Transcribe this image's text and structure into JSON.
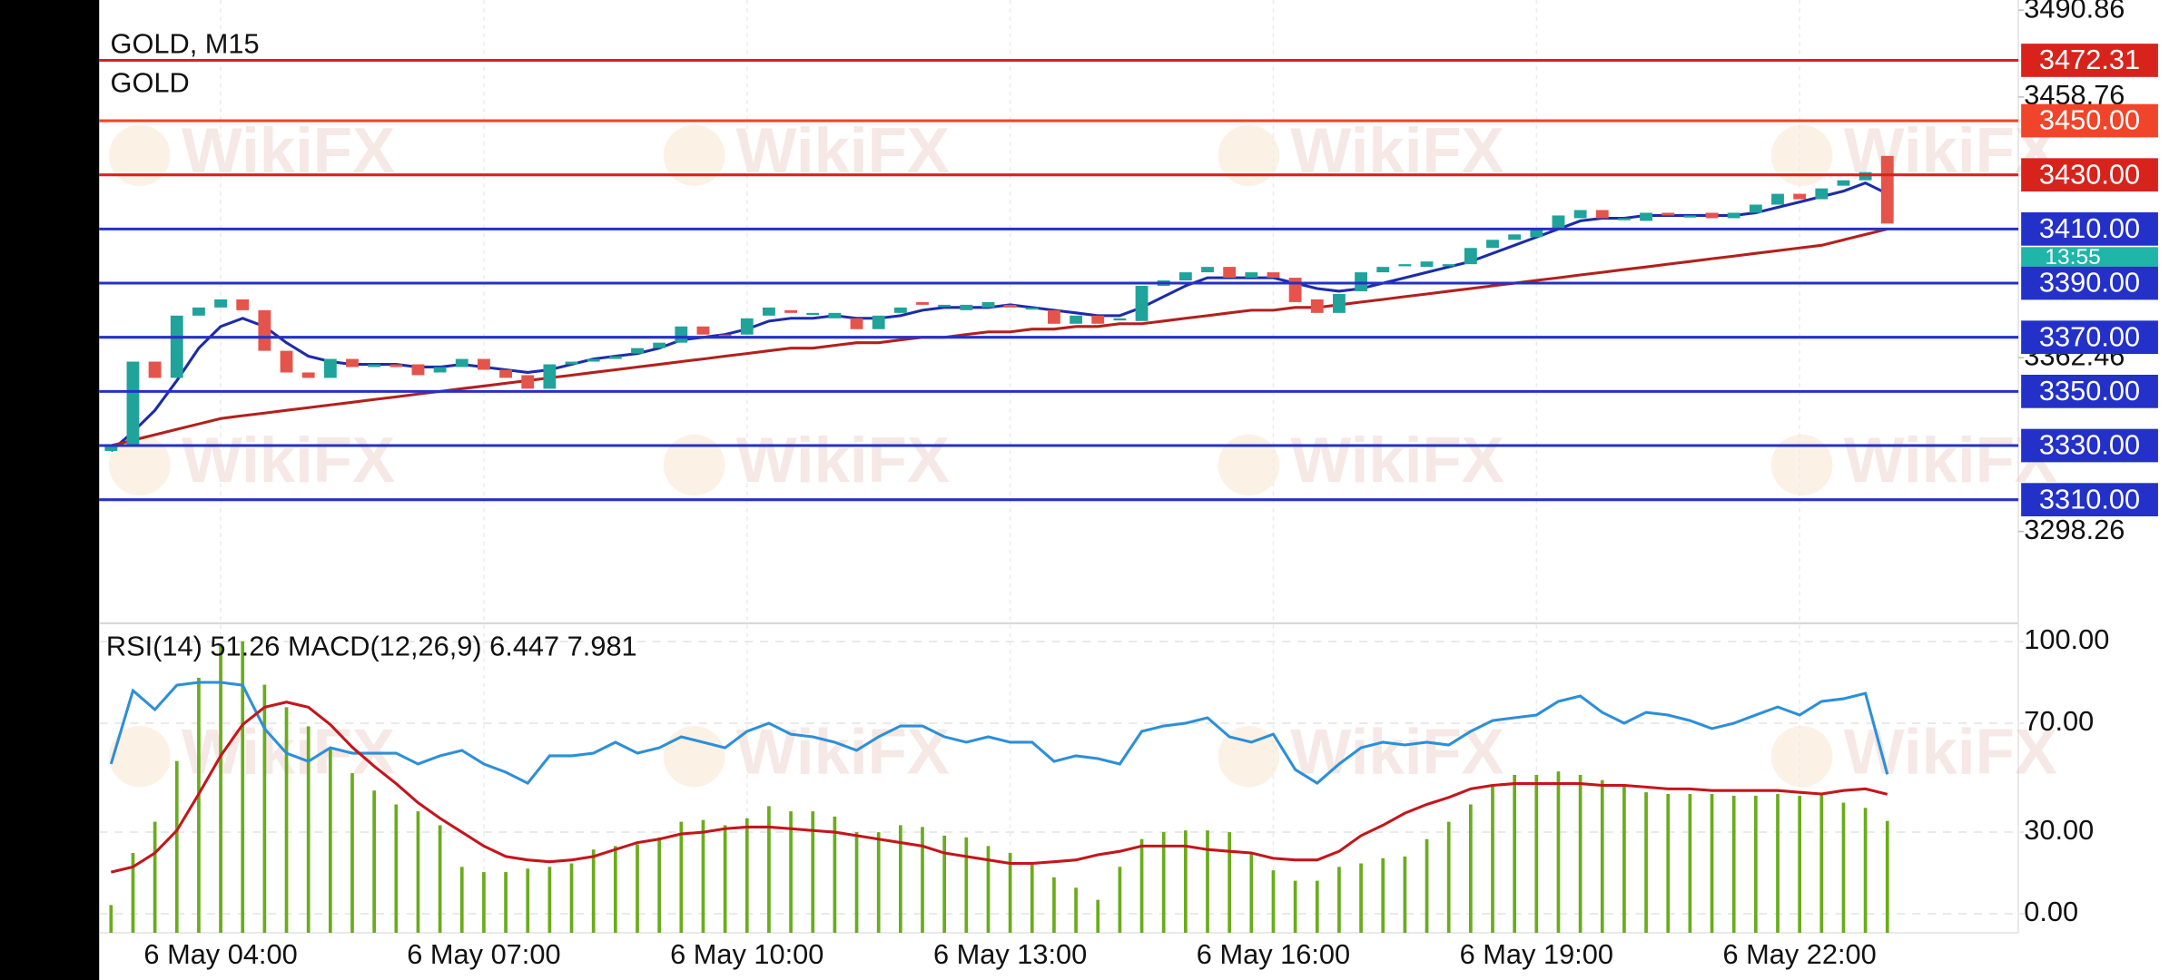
{
  "watermark": "WikiFX",
  "chart_data": [
    {
      "type": "candlestick",
      "title": "GOLD, M15",
      "subtitle": "GOLD",
      "countdown": "13:55",
      "up_color": "#20a39b",
      "down_color": "#e5544b",
      "grid": true,
      "ylim": [
        3266.4,
        3494.6
      ],
      "yticks": [
        3490.86,
        3458.76,
        3362.46,
        3298.26
      ],
      "categories": [
        null,
        null,
        null,
        null,
        null,
        "6 May 04:00",
        null,
        null,
        null,
        null,
        null,
        null,
        null,
        null,
        null,
        null,
        null,
        "6 May 07:00",
        null,
        null,
        null,
        null,
        null,
        null,
        null,
        null,
        null,
        null,
        null,
        "6 May 10:00",
        null,
        null,
        null,
        null,
        null,
        null,
        null,
        null,
        null,
        null,
        null,
        "6 May 13:00",
        null,
        null,
        null,
        null,
        null,
        null,
        null,
        null,
        null,
        null,
        null,
        "6 May 16:00",
        null,
        null,
        null,
        null,
        null,
        null,
        null,
        null,
        null,
        null,
        null,
        "6 May 19:00",
        null,
        null,
        null,
        null,
        null,
        null,
        null,
        null,
        null,
        null,
        null,
        "6 May 22:00",
        null,
        null,
        null,
        null
      ],
      "open": [
        3328,
        3330,
        3361,
        3355,
        3378,
        3381,
        3384,
        3380,
        3365,
        3357,
        3355,
        3362,
        3359,
        3360,
        3360,
        3357,
        3359,
        3362,
        3358,
        3356,
        3351,
        3360,
        3361,
        3362,
        3364,
        3366,
        3368,
        3374,
        3371,
        3371,
        3378,
        3380,
        3379,
        3377,
        3377,
        3373,
        3379,
        3383,
        3382,
        3380,
        3381,
        3382,
        3381,
        3380,
        3375,
        3378,
        3377,
        3376,
        3389,
        3391,
        3394,
        3396,
        3392,
        3394,
        3392,
        3384,
        3379,
        3387,
        3394,
        3397,
        3396,
        3397,
        3397,
        3403,
        3406,
        3407,
        3410,
        3414,
        3417,
        3414,
        3413,
        3416,
        3415,
        3416,
        3414,
        3416,
        3419,
        3423,
        3421,
        3426,
        3428,
        3437
      ],
      "close": [
        3330,
        3361,
        3355,
        3378,
        3381,
        3384,
        3380,
        3365,
        3357,
        3355,
        3362,
        3359,
        3360,
        3359,
        3356,
        3359,
        3362,
        3358,
        3355,
        3351,
        3360,
        3361,
        3362,
        3363,
        3366,
        3368,
        3374,
        3371,
        3370,
        3377,
        3381,
        3379,
        3379,
        3379,
        3373,
        3378,
        3381,
        3382,
        3382,
        3382,
        3383,
        3381,
        3381,
        3375,
        3378,
        3375,
        3377,
        3389,
        3391,
        3394,
        3396,
        3392,
        3394,
        3392,
        3383,
        3379,
        3386,
        3394,
        3396,
        3397,
        3398,
        3397,
        3403,
        3406,
        3408,
        3410,
        3415,
        3417,
        3414,
        3414,
        3416,
        3415,
        3415,
        3414,
        3416,
        3419,
        3423,
        3421,
        3425,
        3428,
        3431,
        3412
      ],
      "series": [
        {
          "color": "#1c2ca8",
          "values": [
            3328,
            3335,
            3343,
            3354,
            3366,
            3374,
            3377,
            3374,
            3368,
            3363,
            3361,
            3360,
            3360,
            3360,
            3359,
            3359,
            3360,
            3359,
            3358,
            3357,
            3358,
            3360,
            3362,
            3363,
            3364,
            3366,
            3369,
            3370,
            3371,
            3373,
            3376,
            3377,
            3377,
            3378,
            3377,
            3377,
            3378,
            3380,
            3381,
            3381,
            3381,
            3382,
            3381,
            3380,
            3379,
            3378,
            3378,
            3381,
            3385,
            3389,
            3392,
            3392,
            3392,
            3392,
            3390,
            3388,
            3387,
            3388,
            3390,
            3392,
            3394,
            3396,
            3398,
            3401,
            3404,
            3407,
            3410,
            3413,
            3414,
            3414,
            3415,
            3415,
            3415,
            3415,
            3415,
            3416,
            3418,
            3420,
            3422,
            3424,
            3427,
            3423
          ]
        },
        {
          "color": "#b3201c",
          "values": [
            3330,
            3332,
            3334,
            3336,
            3338,
            3340,
            3341,
            3342,
            3343,
            3344,
            3345,
            3346,
            3347,
            3348,
            3349,
            3350,
            3351,
            3352,
            3353,
            3354,
            3355,
            3356,
            3357,
            3358,
            3359,
            3360,
            3361,
            3362,
            3363,
            3364,
            3365,
            3366,
            3366,
            3367,
            3368,
            3368,
            3369,
            3370,
            3370,
            3371,
            3372,
            3372,
            3373,
            3373,
            3374,
            3374,
            3375,
            3375,
            3376,
            3377,
            3378,
            3379,
            3380,
            3380,
            3381,
            3381,
            3382,
            3383,
            3384,
            3385,
            3386,
            3387,
            3388,
            3389,
            3390,
            3391,
            3392,
            3393,
            3394,
            3395,
            3396,
            3397,
            3398,
            3399,
            3400,
            3401,
            3402,
            3403,
            3404,
            3406,
            3408,
            3410
          ]
        }
      ],
      "levels": [
        {
          "value": 3472.31,
          "label": "3472.31",
          "color": "#d8231c"
        },
        {
          "value": 3450,
          "label": "3450.00",
          "color": "#f0452a"
        },
        {
          "value": 3430,
          "label": "3430.00",
          "color": "#d8231c"
        },
        {
          "value": 3410,
          "label": "3410.00",
          "color": "#2431c8"
        },
        {
          "value": 3390,
          "label": "3390.00",
          "color": "#2431c8"
        },
        {
          "value": 3370,
          "label": "3370.00",
          "color": "#2431c8"
        },
        {
          "value": 3350,
          "label": "3350.00",
          "color": "#2431c8"
        },
        {
          "value": 3330,
          "label": "3330.00",
          "color": "#2431c8"
        },
        {
          "value": 3310,
          "label": "3310.00",
          "color": "#2431c8"
        }
      ]
    },
    {
      "type": "indicator",
      "title": "RSI(14) 51.26 MACD(12,26,9) 6.447 7.981",
      "ylim": [
        -7,
        105.2
      ],
      "y2lim": [
        0,
        17.6
      ],
      "yticks": [
        {
          "value": 100,
          "label": "100.00"
        },
        {
          "value": 70,
          "label": "70.00"
        },
        {
          "value": 30,
          "label": "30.00"
        },
        {
          "value": 0,
          "label": "0.00"
        }
      ],
      "series": [
        {
          "color": "#2d8fd8",
          "values": [
            55,
            82,
            75,
            84,
            85,
            85,
            84,
            68,
            59,
            56,
            61,
            59,
            59,
            59,
            55,
            58,
            60,
            55,
            52,
            48,
            58,
            58,
            59,
            63,
            59,
            61,
            65,
            63,
            61,
            67,
            70,
            66,
            65,
            63,
            60,
            65,
            69,
            69,
            65,
            63,
            65,
            63,
            63,
            56,
            58,
            57,
            55,
            67,
            69,
            70,
            72,
            65,
            63,
            66,
            53,
            48,
            55,
            61,
            63,
            62,
            63,
            62,
            67,
            71,
            72,
            73,
            78,
            80,
            74,
            70,
            74,
            73,
            71,
            68,
            70,
            73,
            76,
            73,
            78,
            79,
            81,
            51.26
          ]
        },
        {
          "color": "#6aac1c",
          "axis": "y2",
          "bars": true,
          "values": [
            1.6,
            4.6,
            6.4,
            9.9,
            14.7,
            16.6,
            16.8,
            14.3,
            13.0,
            11.9,
            10.6,
            9.2,
            8.2,
            7.4,
            7.0,
            6.2,
            3.8,
            3.5,
            3.5,
            3.7,
            3.8,
            4.0,
            4.8,
            5.0,
            5.1,
            5.5,
            6.4,
            6.5,
            6.2,
            6.6,
            7.3,
            7.0,
            7.0,
            6.7,
            5.8,
            5.8,
            6.2,
            6.1,
            5.6,
            5.5,
            5.0,
            4.6,
            4.0,
            3.2,
            2.6,
            1.9,
            3.8,
            5.4,
            5.8,
            5.9,
            5.9,
            5.8,
            4.6,
            3.6,
            3.0,
            3.0,
            3.8,
            4.0,
            4.3,
            4.4,
            5.4,
            6.4,
            7.4,
            8.5,
            9.1,
            9.1,
            9.3,
            9.1,
            8.8,
            8.5,
            8.1,
            8.0,
            8.0,
            8.0,
            7.9,
            7.9,
            8.0,
            7.9,
            8.0,
            7.5,
            7.2,
            6.447
          ]
        },
        {
          "color": "#c4161c",
          "axis": "y2",
          "values": [
            3.5,
            3.8,
            4.6,
            5.9,
            8.0,
            10.2,
            12.0,
            13.0,
            13.3,
            13.0,
            12.0,
            10.7,
            9.6,
            8.6,
            7.5,
            6.6,
            5.8,
            5.0,
            4.4,
            4.2,
            4.1,
            4.2,
            4.4,
            4.8,
            5.2,
            5.4,
            5.7,
            5.8,
            6.0,
            6.1,
            6.1,
            6.0,
            5.9,
            5.8,
            5.6,
            5.4,
            5.2,
            5.0,
            4.6,
            4.4,
            4.2,
            4.0,
            4.0,
            4.1,
            4.2,
            4.5,
            4.7,
            5.0,
            5.0,
            5.0,
            4.8,
            4.7,
            4.6,
            4.3,
            4.2,
            4.2,
            4.7,
            5.6,
            6.2,
            6.9,
            7.4,
            7.8,
            8.3,
            8.5,
            8.6,
            8.6,
            8.6,
            8.6,
            8.5,
            8.5,
            8.4,
            8.3,
            8.3,
            8.2,
            8.2,
            8.2,
            8.2,
            8.1,
            8.0,
            8.2,
            8.3,
            7.981
          ]
        }
      ]
    }
  ]
}
